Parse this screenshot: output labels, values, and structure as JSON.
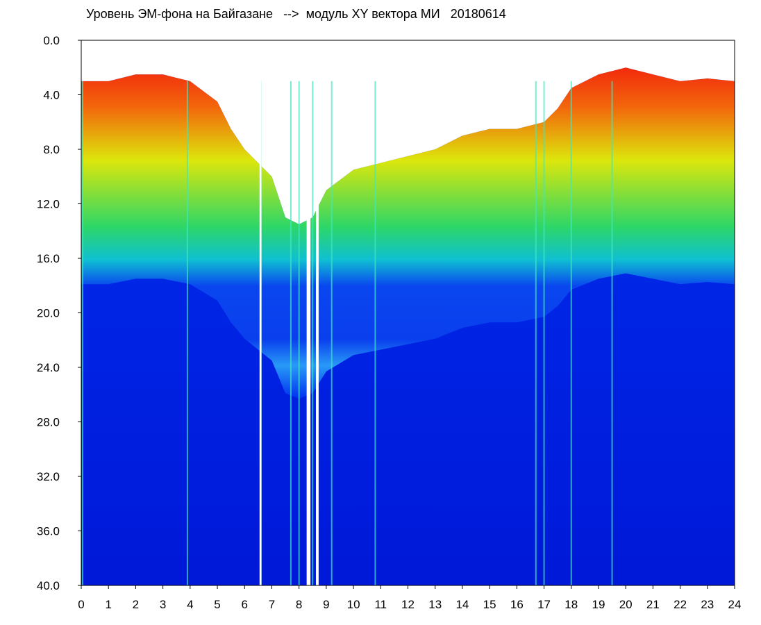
{
  "chart_data": {
    "type": "heatmap",
    "title": "Уровень ЭМ-фона на Байгазане   -->  модуль XY вектора МИ   20180614",
    "xlabel": "",
    "ylabel": "",
    "xlim": [
      0,
      24
    ],
    "ylim": [
      0,
      40
    ],
    "y_axis_inverted": true,
    "x_ticks": [
      "0",
      "1",
      "2",
      "3",
      "4",
      "5",
      "6",
      "7",
      "8",
      "9",
      "10",
      "11",
      "12",
      "13",
      "14",
      "15",
      "16",
      "17",
      "18",
      "19",
      "20",
      "21",
      "22",
      "23",
      "24"
    ],
    "y_ticks": [
      "0.0",
      "4.0",
      "8.0",
      "12.0",
      "16.0",
      "20.0",
      "24.0",
      "28.0",
      "32.0",
      "36.0",
      "40.0"
    ],
    "colorscale": [
      "#0018e8",
      "#00b8ff",
      "#30ff90",
      "#f0ff00",
      "#ff2000"
    ],
    "background_color": "#ffffff",
    "grid": false,
    "legend": "none",
    "signal_upper_edge": {
      "x": [
        0,
        1,
        2,
        3,
        4,
        5,
        5.5,
        6,
        6.5,
        7,
        7.5,
        8,
        8.5,
        9,
        10,
        11,
        12,
        13,
        14,
        15,
        16,
        17,
        17.5,
        18,
        19,
        20,
        21,
        22,
        23,
        24
      ],
      "y": [
        3,
        3,
        2.5,
        2.5,
        3,
        4.5,
        6.5,
        8,
        9,
        10,
        13,
        13.5,
        13,
        11,
        9.5,
        9,
        8.5,
        8,
        7,
        6.5,
        6.5,
        6,
        5,
        3.5,
        2.5,
        2,
        2.5,
        3,
        2.8,
        3
      ]
    },
    "band_edges": {
      "red_yellow_to_green": 8.0,
      "green_to_blue": 9.5,
      "cyan_band_lower": 14.5
    },
    "gaps": [
      {
        "x_start": 6.55,
        "x_end": 6.62
      },
      {
        "x_start": 8.28,
        "x_end": 8.42
      },
      {
        "x_start": 8.62,
        "x_end": 8.72
      }
    ],
    "vertical_streaks": [
      0.05,
      3.9,
      6.6,
      7.7,
      8.0,
      8.5,
      9.2,
      10.8,
      16.7,
      17.0,
      18.0,
      19.5
    ]
  }
}
